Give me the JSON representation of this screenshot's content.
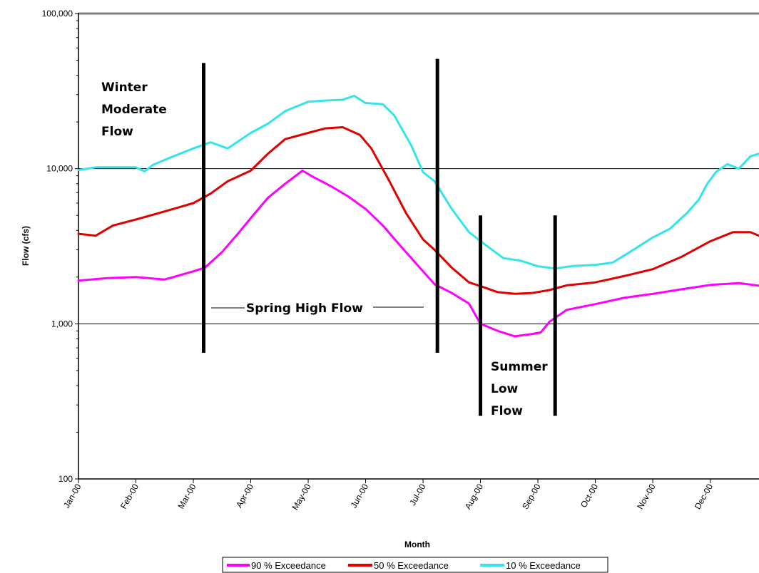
{
  "chart_data": {
    "type": "line",
    "title": "",
    "xlabel": "Month",
    "ylabel": "Flow (cfs)",
    "yscale": "log",
    "ylim": [
      100,
      100000
    ],
    "xlim": [
      0,
      11.85
    ],
    "yticks": [
      {
        "value": 100,
        "label": "100"
      },
      {
        "value": 1000,
        "label": "1,000"
      },
      {
        "value": 10000,
        "label": "10,000"
      },
      {
        "value": 100000,
        "label": "100,000"
      }
    ],
    "xticks": [
      {
        "value": 0,
        "label": "Jan-00"
      },
      {
        "value": 1,
        "label": "Feb-00"
      },
      {
        "value": 2,
        "label": "Mar-00"
      },
      {
        "value": 3,
        "label": "Apr-00"
      },
      {
        "value": 4,
        "label": "May-00"
      },
      {
        "value": 5,
        "label": "Jun-00"
      },
      {
        "value": 6,
        "label": "Jul-00"
      },
      {
        "value": 7,
        "label": "Aug-00"
      },
      {
        "value": 8,
        "label": "Sep-00"
      },
      {
        "value": 9,
        "label": "Oct-00"
      },
      {
        "value": 10,
        "label": "Nov-00"
      },
      {
        "value": 11,
        "label": "Dec-00"
      }
    ],
    "gridlines": [
      1000,
      10000
    ],
    "legend_position": "bottom",
    "series": [
      {
        "name": "90 % Exceedance",
        "color": "#ff00ff",
        "points": [
          [
            0,
            1900
          ],
          [
            0.5,
            1970
          ],
          [
            1,
            2000
          ],
          [
            1.5,
            1930
          ],
          [
            2,
            2180
          ],
          [
            2.2,
            2300
          ],
          [
            2.5,
            2900
          ],
          [
            2.8,
            3900
          ],
          [
            3,
            4800
          ],
          [
            3.3,
            6500
          ],
          [
            3.6,
            8000
          ],
          [
            3.9,
            9700
          ],
          [
            4.1,
            8800
          ],
          [
            4.4,
            7700
          ],
          [
            4.7,
            6600
          ],
          [
            5,
            5500
          ],
          [
            5.3,
            4300
          ],
          [
            5.6,
            3200
          ],
          [
            5.9,
            2400
          ],
          [
            6.2,
            1800
          ],
          [
            6.5,
            1580
          ],
          [
            6.8,
            1350
          ],
          [
            7,
            1000
          ],
          [
            7.3,
            900
          ],
          [
            7.6,
            830
          ],
          [
            7.9,
            860
          ],
          [
            8.05,
            880
          ],
          [
            8.2,
            1030
          ],
          [
            8.5,
            1230
          ],
          [
            9,
            1340
          ],
          [
            9.5,
            1470
          ],
          [
            10,
            1560
          ],
          [
            10.5,
            1670
          ],
          [
            11,
            1780
          ],
          [
            11.5,
            1830
          ],
          [
            11.85,
            1760
          ]
        ]
      },
      {
        "name": "50 % Exceedance",
        "color": "#e00000",
        "points": [
          [
            0,
            3800
          ],
          [
            0.3,
            3700
          ],
          [
            0.6,
            4300
          ],
          [
            1,
            4700
          ],
          [
            1.5,
            5300
          ],
          [
            2,
            6000
          ],
          [
            2.3,
            6900
          ],
          [
            2.6,
            8300
          ],
          [
            3,
            9700
          ],
          [
            3.3,
            12500
          ],
          [
            3.6,
            15500
          ],
          [
            4,
            17000
          ],
          [
            4.3,
            18200
          ],
          [
            4.6,
            18500
          ],
          [
            4.9,
            16500
          ],
          [
            5.1,
            13500
          ],
          [
            5.4,
            8500
          ],
          [
            5.7,
            5200
          ],
          [
            6,
            3500
          ],
          [
            6.2,
            3000
          ],
          [
            6.5,
            2300
          ],
          [
            6.8,
            1850
          ],
          [
            7,
            1750
          ],
          [
            7.3,
            1600
          ],
          [
            7.6,
            1560
          ],
          [
            7.9,
            1580
          ],
          [
            8.2,
            1650
          ],
          [
            8.5,
            1770
          ],
          [
            9,
            1850
          ],
          [
            9.5,
            2030
          ],
          [
            10,
            2250
          ],
          [
            10.5,
            2700
          ],
          [
            11,
            3400
          ],
          [
            11.4,
            3900
          ],
          [
            11.7,
            3900
          ],
          [
            11.85,
            3700
          ]
        ]
      },
      {
        "name": "10 % Exceedance",
        "color": "#33e5ea",
        "points": [
          [
            0,
            9800
          ],
          [
            0.3,
            10200
          ],
          [
            0.6,
            10200
          ],
          [
            1,
            10200
          ],
          [
            1.15,
            9600
          ],
          [
            1.3,
            10600
          ],
          [
            1.6,
            11800
          ],
          [
            2,
            13500
          ],
          [
            2.3,
            14800
          ],
          [
            2.6,
            13500
          ],
          [
            3,
            17000
          ],
          [
            3.3,
            19500
          ],
          [
            3.6,
            23500
          ],
          [
            4,
            27000
          ],
          [
            4.3,
            27500
          ],
          [
            4.6,
            27800
          ],
          [
            4.8,
            29500
          ],
          [
            5,
            26500
          ],
          [
            5.3,
            26000
          ],
          [
            5.5,
            22000
          ],
          [
            5.8,
            14000
          ],
          [
            6,
            9500
          ],
          [
            6.2,
            8300
          ],
          [
            6.5,
            5500
          ],
          [
            6.8,
            3900
          ],
          [
            7.1,
            3200
          ],
          [
            7.4,
            2650
          ],
          [
            7.7,
            2550
          ],
          [
            8,
            2350
          ],
          [
            8.3,
            2270
          ],
          [
            8.6,
            2360
          ],
          [
            9,
            2400
          ],
          [
            9.3,
            2480
          ],
          [
            9.6,
            2900
          ],
          [
            10,
            3600
          ],
          [
            10.3,
            4100
          ],
          [
            10.6,
            5200
          ],
          [
            10.8,
            6300
          ],
          [
            10.95,
            8000
          ],
          [
            11.1,
            9500
          ],
          [
            11.3,
            10700
          ],
          [
            11.5,
            10000
          ],
          [
            11.7,
            12000
          ],
          [
            11.85,
            12500
          ]
        ]
      }
    ],
    "season_markers": [
      {
        "x": 2.18,
        "ymin": 650,
        "ymax": 48000
      },
      {
        "x": 6.25,
        "ymin": 650,
        "ymax": 51000
      },
      {
        "x": 7.0,
        "ymin": 255,
        "ymax": 5000
      },
      {
        "x": 8.3,
        "ymin": 255,
        "ymax": 5000
      }
    ],
    "annotations": [
      {
        "id": "winter",
        "lines": [
          "Winter",
          "Moderate",
          "Flow"
        ]
      },
      {
        "id": "spring",
        "lines": [
          "Spring High Flow"
        ]
      },
      {
        "id": "summer",
        "lines": [
          "Summer",
          "Low",
          "Flow"
        ]
      }
    ]
  }
}
